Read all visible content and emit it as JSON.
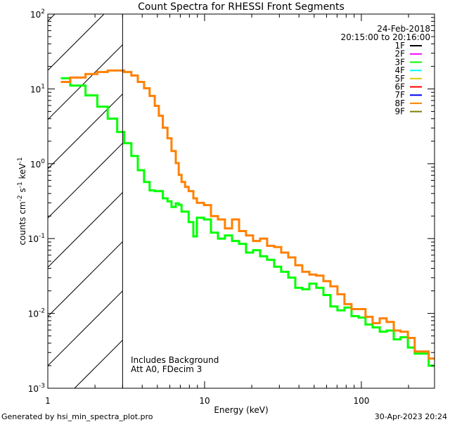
{
  "chart_data": {
    "type": "line",
    "title": "Count Spectra for RHESSI Front Segments",
    "date": "24-Feb-2018",
    "time_range": "20:15:00 to 20:16:00",
    "xlabel": "Energy (keV)",
    "ylabel": {
      "main": "counts cm",
      "e1": "-2",
      "mid1": " s",
      "e2": "-1",
      "mid2": " keV",
      "e3": "-1"
    },
    "xscale": "log",
    "yscale": "log",
    "xlim": [
      1,
      293
    ],
    "ylim": [
      0.001,
      100
    ],
    "x_ticks": [
      {
        "value": 1,
        "label": "1"
      },
      {
        "value": 10,
        "label": "10"
      },
      {
        "value": 100,
        "label": "100"
      }
    ],
    "y_ticks": [
      {
        "value": 0.001,
        "base": "10",
        "exp": "-3"
      },
      {
        "value": 0.01,
        "base": "10",
        "exp": "-2"
      },
      {
        "value": 0.1,
        "base": "10",
        "exp": "-1"
      },
      {
        "value": 1,
        "base": "10",
        "exp": "0"
      },
      {
        "value": 10,
        "base": "10",
        "exp": "1"
      },
      {
        "value": 100,
        "base": "10",
        "exp": "2"
      }
    ],
    "shaded_region_keV": [
      1,
      3
    ],
    "legend": [
      {
        "label": "1F",
        "color": "#000000"
      },
      {
        "label": "2F",
        "color": "#ff00ff"
      },
      {
        "label": "3F",
        "color": "#00ff00"
      },
      {
        "label": "4F",
        "color": "#00ffff"
      },
      {
        "label": "5F",
        "color": "#d4d000"
      },
      {
        "label": "6F",
        "color": "#ff0000"
      },
      {
        "label": "7F",
        "color": "#0000ff"
      },
      {
        "label": "8F",
        "color": "#ff8000"
      },
      {
        "label": "9F",
        "color": "#808000"
      }
    ],
    "energy_edges": [
      1.21,
      1.39,
      1.74,
      2.07,
      2.41,
      2.77,
      3.07,
      3.41,
      3.75,
      4.11,
      4.46,
      4.81,
      5.11,
      5.42,
      5.8,
      6.15,
      6.55,
      6.84,
      7.13,
      7.51,
      7.91,
      8.48,
      8.93,
      9.9,
      10.98,
      12.17,
      13.49,
      14.96,
      16.59,
      18.39,
      20.39,
      22.61,
      25.06,
      27.79,
      30.8,
      34.2,
      37.9,
      42.0,
      46.6,
      51.6,
      57.3,
      63.5,
      70.4,
      78.0,
      86.5,
      95.9,
      106.3,
      118,
      131,
      145,
      161,
      178,
      198,
      219,
      243,
      269,
      293
    ],
    "series": [
      {
        "name": "3F",
        "color": "#00ff00",
        "values": [
          13.9,
          11.1,
          8.2,
          5.8,
          4.0,
          2.66,
          1.88,
          1.27,
          0.82,
          0.57,
          0.44,
          0.43,
          0.43,
          0.345,
          0.315,
          0.265,
          0.296,
          0.283,
          0.229,
          0.229,
          0.166,
          0.107,
          0.19,
          0.18,
          0.12,
          0.1,
          0.11,
          0.093,
          0.085,
          0.065,
          0.07,
          0.058,
          0.052,
          0.042,
          0.036,
          0.03,
          0.022,
          0.021,
          0.025,
          0.022,
          0.0176,
          0.0124,
          0.011,
          0.012,
          0.0092,
          0.0088,
          0.0071,
          0.0065,
          0.0057,
          0.0059,
          0.0045,
          0.0048,
          0.0035,
          0.0029,
          0.0029,
          0.002
        ]
      },
      {
        "name": "8F",
        "color": "#ff8000",
        "values": [
          12.4,
          14.2,
          15.8,
          16.8,
          17.6,
          17.6,
          16.8,
          15.1,
          12.4,
          10.2,
          8.05,
          5.94,
          4.38,
          3.03,
          2.19,
          1.48,
          1.02,
          0.71,
          0.57,
          0.49,
          0.43,
          0.345,
          0.3,
          0.28,
          0.2,
          0.18,
          0.137,
          0.18,
          0.126,
          0.11,
          0.093,
          0.1,
          0.08,
          0.077,
          0.065,
          0.056,
          0.044,
          0.036,
          0.033,
          0.032,
          0.027,
          0.023,
          0.018,
          0.0133,
          0.0114,
          0.0114,
          0.009,
          0.0074,
          0.0086,
          0.0077,
          0.0059,
          0.0057,
          0.0047,
          0.0031,
          0.0031,
          0.0025
        ]
      }
    ],
    "annotations": [
      "Includes Background",
      "Att A0, FDecim 3"
    ]
  },
  "footer": {
    "generated_by": "Generated by hsi_min_spectra_plot.pro",
    "timestamp": "30-Apr-2023 20:24"
  }
}
